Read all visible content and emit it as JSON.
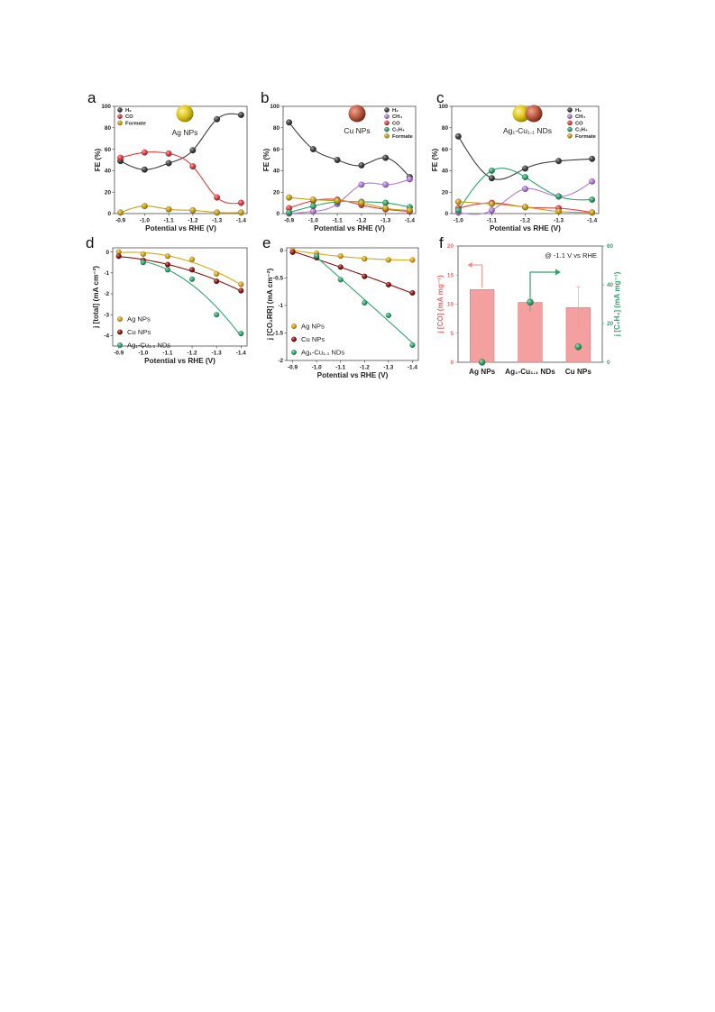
{
  "colors": {
    "h2": "#3d3d3d",
    "co": "#e23c3c",
    "formate": "#c9a012",
    "ch4": "#b27ad6",
    "c2h4": "#2fa46a",
    "ag": "#d9a615",
    "cu": "#8e1212",
    "agcu": "#2fa873",
    "bar": "#f4a0a0",
    "bar_edge": "#d9777a",
    "left_axis_f": "#e56b6b",
    "right_axis_f": "#2fa46a"
  },
  "chart_data": [
    {
      "id": "a",
      "letter": "a",
      "type": "scatter",
      "xlabel": "Potential vs RHE (V)",
      "ylabel": "FE (%)",
      "x": [
        -0.9,
        -1.0,
        -1.1,
        -1.2,
        -1.3,
        -1.4
      ],
      "xticklabels": [
        "-0.9",
        "-1.0",
        "-1.1",
        "-1.2",
        "-1.3",
        "-1.4"
      ],
      "ylim": [
        0,
        100
      ],
      "yticks": [
        0,
        20,
        40,
        60,
        80,
        100
      ],
      "inset_label": "Ag NPs",
      "inset_spheres": [
        "ag"
      ],
      "legend": [
        "H₂",
        "CO",
        "Formate"
      ],
      "series": [
        {
          "name": "H₂",
          "color": "h2",
          "values": [
            49,
            41,
            47,
            59,
            88,
            92
          ]
        },
        {
          "name": "CO",
          "color": "co",
          "values": [
            52,
            57,
            56,
            44,
            15,
            10
          ]
        },
        {
          "name": "Formate",
          "color": "formate",
          "values": [
            1,
            7,
            4,
            3,
            1,
            1
          ]
        }
      ]
    },
    {
      "id": "b",
      "letter": "b",
      "type": "scatter",
      "xlabel": "Potential vs RHE (V)",
      "ylabel": "FE (%)",
      "x": [
        -0.9,
        -1.0,
        -1.1,
        -1.2,
        -1.3,
        -1.4
      ],
      "xticklabels": [
        "-0.9",
        "-1.0",
        "-1.1",
        "-1.2",
        "-1.3",
        "-1.4"
      ],
      "ylim": [
        0,
        100
      ],
      "yticks": [
        0,
        20,
        40,
        60,
        80,
        100
      ],
      "inset_label": "Cu NPs",
      "inset_spheres": [
        "cu"
      ],
      "legend": [
        "H₂",
        "CH₄",
        "CO",
        "C₂H₄",
        "Formate"
      ],
      "series": [
        {
          "name": "H₂",
          "color": "h2",
          "values": [
            85,
            60,
            50,
            45,
            52,
            34
          ]
        },
        {
          "name": "CH₄",
          "color": "ch4",
          "values": [
            0,
            2,
            9,
            27,
            27,
            32
          ]
        },
        {
          "name": "CO",
          "color": "co",
          "values": [
            5,
            12,
            13,
            8,
            4,
            2
          ]
        },
        {
          "name": "C₂H₄",
          "color": "c2h4",
          "values": [
            1,
            7,
            11,
            11,
            10,
            6
          ]
        },
        {
          "name": "Formate",
          "color": "formate",
          "values": [
            15,
            13,
            12,
            10,
            5,
            3
          ]
        }
      ]
    },
    {
      "id": "c",
      "letter": "c",
      "type": "scatter",
      "xlabel": "Potential vs RHE (V)",
      "ylabel": "FE (%)",
      "x": [
        -1.0,
        -1.1,
        -1.2,
        -1.3,
        -1.4
      ],
      "xticklabels": [
        "-1.0",
        "-1.1",
        "-1.2",
        "-1.3",
        "-1.4"
      ],
      "ylim": [
        0,
        100
      ],
      "yticks": [
        0,
        20,
        40,
        60,
        80,
        100
      ],
      "inset_label": "Ag₁-Cu₁.₁ NDs",
      "inset_spheres": [
        "ag",
        "cu"
      ],
      "legend": [
        "H₂",
        "CH₄",
        "CO",
        "C₂H₄",
        "Formate"
      ],
      "series": [
        {
          "name": "H₂",
          "color": "h2",
          "values": [
            72,
            33,
            42,
            49,
            51
          ]
        },
        {
          "name": "CH₄",
          "color": "ch4",
          "values": [
            1,
            3,
            23,
            16,
            30
          ]
        },
        {
          "name": "CO",
          "color": "co",
          "values": [
            5,
            10,
            6,
            5,
            1
          ]
        },
        {
          "name": "C₂H₄",
          "color": "c2h4",
          "values": [
            3,
            40,
            34,
            16,
            13
          ]
        },
        {
          "name": "Formate",
          "color": "formate",
          "values": [
            11,
            9,
            6,
            2,
            1
          ]
        }
      ]
    },
    {
      "id": "d",
      "letter": "d",
      "type": "scatter",
      "xlabel": "Potential vs RHE (V)",
      "ylabel": "j [total] (mA cm⁻²)",
      "x": [
        -0.9,
        -1.0,
        -1.1,
        -1.2,
        -1.3,
        -1.4
      ],
      "xticklabels": [
        "-0.9",
        "-1.0",
        "-1.1",
        "-1.2",
        "-1.3",
        "-1.4"
      ],
      "ylim": [
        -4.5,
        0.2
      ],
      "yticks": [
        0,
        -1,
        -2,
        -3,
        -4
      ],
      "legend": [
        "Ag NPs",
        "Cu NPs",
        "Ag₁-Cu₁.₁ NDs"
      ],
      "series": [
        {
          "name": "Ag NPs",
          "color": "ag",
          "values": [
            0,
            -0.1,
            -0.2,
            -0.35,
            -1.05,
            -1.55
          ]
        },
        {
          "name": "Cu NPs",
          "color": "cu",
          "values": [
            -0.2,
            -0.4,
            -0.6,
            -0.85,
            -1.4,
            -1.85
          ]
        },
        {
          "name": "Ag₁-Cu₁.₁ NDs",
          "color": "agcu",
          "values": [
            null,
            -0.5,
            -0.85,
            -1.3,
            -3.0,
            -3.9
          ]
        }
      ]
    },
    {
      "id": "e",
      "letter": "e",
      "type": "scatter",
      "xlabel": "Potential vs RHE (V)",
      "ylabel": "j [CO₂RR] (mA cm⁻²)",
      "x": [
        -0.9,
        -1.0,
        -1.1,
        -1.2,
        -1.3,
        -1.4
      ],
      "xticklabels": [
        "-0.9",
        "-1.0",
        "-1.1",
        "-1.2",
        "-1.3",
        "-1.4"
      ],
      "ylim": [
        -2.0,
        0.05
      ],
      "yticks": [
        0,
        -0.5,
        -1,
        -1.5,
        -2
      ],
      "yticklabels": [
        "0",
        "-0.5",
        "-1",
        "-1.5",
        "-2"
      ],
      "legend": [
        "Ag NPs",
        "Cu NPs",
        "Ag₁-Cu₁.₁ NDs"
      ],
      "series": [
        {
          "name": "Ag NPs",
          "color": "ag",
          "values": [
            0,
            -0.05,
            -0.1,
            -0.15,
            -0.17,
            -0.17
          ]
        },
        {
          "name": "Cu NPs",
          "color": "cu",
          "values": [
            -0.03,
            -0.13,
            -0.3,
            -0.47,
            -0.62,
            -0.77
          ]
        },
        {
          "name": "Ag₁-Cu₁.₁ NDs",
          "color": "agcu",
          "values": [
            null,
            -0.1,
            -0.53,
            -0.95,
            -1.18,
            -1.72
          ]
        }
      ]
    },
    {
      "id": "f",
      "letter": "f",
      "type": "bar",
      "annotation": "@ -1.1 V vs RHE",
      "categories": [
        "Ag NPs",
        "Ag₁-Cu₁.₁ NDs",
        "Cu NPs"
      ],
      "ylabel": "j [CO] (mA mg⁻¹)",
      "ylim": [
        0,
        20
      ],
      "yticks": [
        0,
        5,
        10,
        15,
        20
      ],
      "values": [
        12.5,
        10.3,
        9.4
      ],
      "errors": [
        0,
        0.7,
        3.6
      ],
      "y2label": "j [C₂H₄] (mA mg⁻¹)",
      "y2lim": [
        0,
        60
      ],
      "y2ticks": [
        0,
        20,
        40,
        60
      ],
      "values2": [
        0,
        31,
        8
      ],
      "errors2": [
        0,
        2,
        0
      ]
    }
  ]
}
